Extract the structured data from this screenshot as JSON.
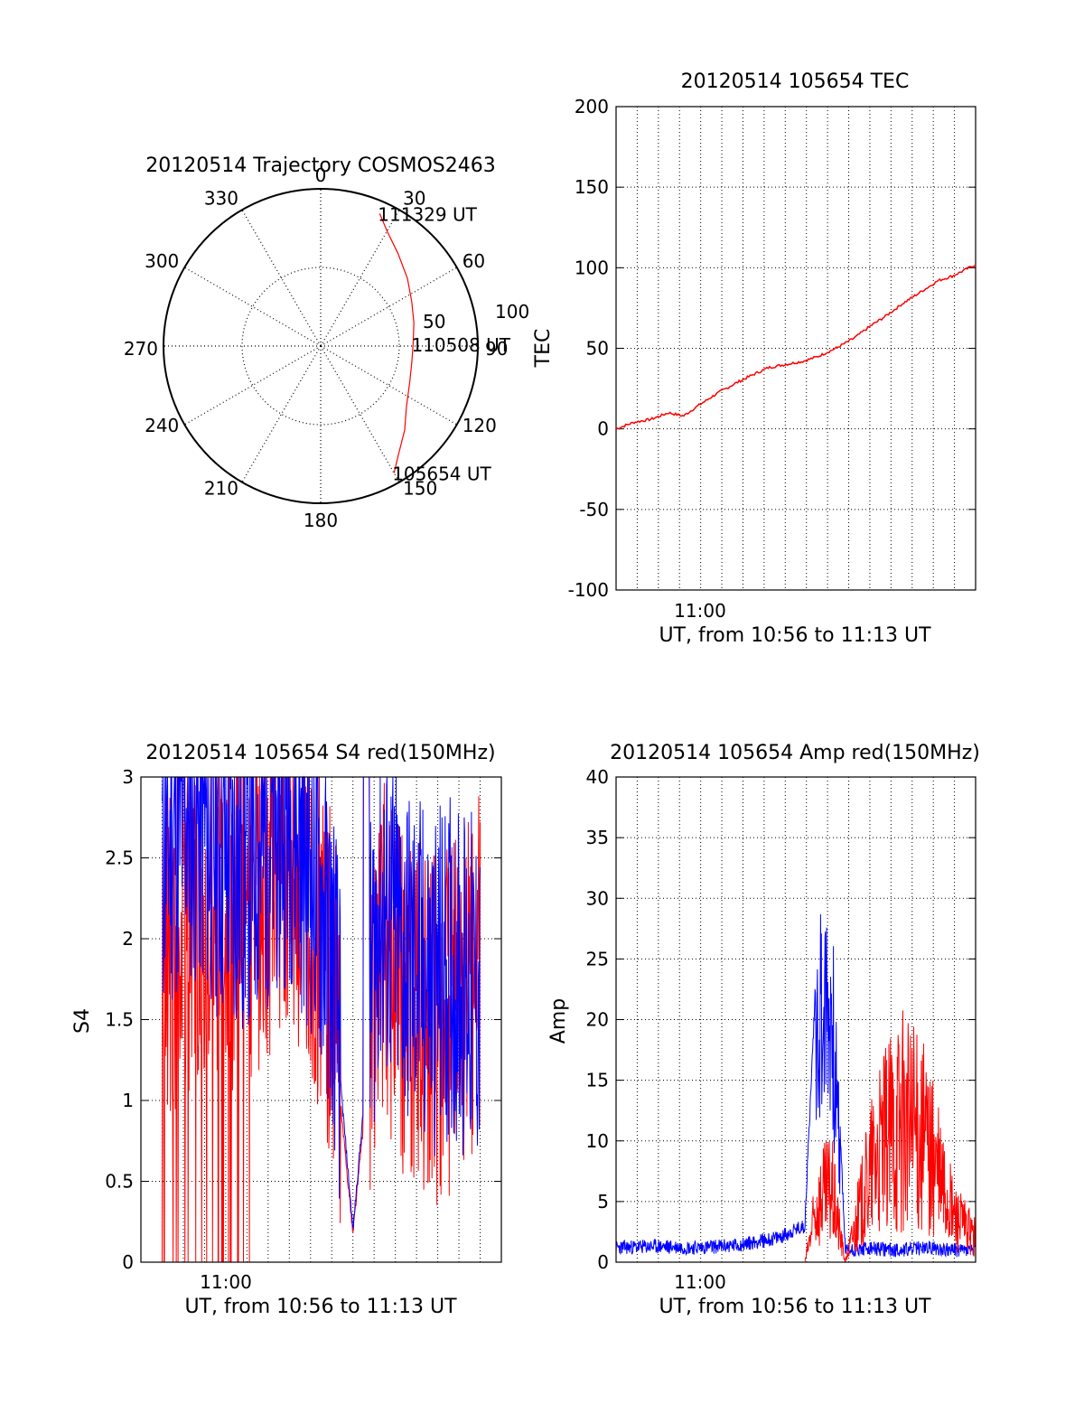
{
  "colors": {
    "red": "#ff0000",
    "blue": "#0000ff",
    "axis": "#000000"
  },
  "chart_data": [
    {
      "id": "trajectory",
      "type": "scatter",
      "title": "20120514 Trajectory COSMOS2463",
      "azimuth_labels": [
        "0",
        "30",
        "60",
        "90",
        "120",
        "150",
        "180",
        "210",
        "240",
        "270",
        "300",
        "330"
      ],
      "elevation_labels": [
        "50",
        "100"
      ],
      "series": [
        {
          "azimuth_deg": [
            150,
            144,
            135,
            125,
            112,
            100,
            88,
            76,
            64,
            52,
            40,
            30,
            24
          ],
          "zenith_deg": [
            84,
            76,
            68,
            60,
            55,
            53,
            53,
            55,
            58,
            63,
            69,
            76,
            83
          ],
          "annotations": [
            {
              "text": "105654 UT",
              "azimuth_deg": 150,
              "zenith_deg": 84
            },
            {
              "text": "110508 UT",
              "azimuth_deg": 89,
              "zenith_deg": 53
            },
            {
              "text": "111329 UT",
              "azimuth_deg": 24,
              "zenith_deg": 83
            }
          ]
        }
      ]
    },
    {
      "id": "tec",
      "type": "line",
      "title": "20120514 105654 TEC",
      "xlabel": "UT, from 10:56 to 11:13 UT",
      "ylabel": "TEC",
      "xlim": [
        10.95,
        11.2167
      ],
      "ylim": [
        -100,
        200
      ],
      "yticks": [
        "200",
        "150",
        "100",
        "50",
        "0",
        "-50",
        "-100"
      ],
      "xtick_label": "11:00",
      "series": [
        {
          "x_hours": [
            10.95,
            10.963,
            10.976,
            10.989,
            11.0,
            11.012,
            11.025,
            11.038,
            11.05,
            11.063,
            11.076,
            11.089,
            11.1,
            11.113,
            11.126,
            11.139,
            11.15,
            11.163,
            11.176,
            11.189,
            11.2,
            11.2167
          ],
          "values": [
            0,
            4,
            6,
            10,
            8,
            15,
            22,
            28,
            33,
            38,
            40,
            42,
            45,
            50,
            56,
            64,
            70,
            78,
            85,
            92,
            95,
            102
          ]
        }
      ]
    },
    {
      "id": "s4",
      "type": "line",
      "title": "20120514 105654 S4 red(150MHz)",
      "xlabel": "UT, from 10:56 to 11:13 UT",
      "ylabel": "S4",
      "xlim": [
        10.9333,
        11.2167
      ],
      "ylim": [
        0,
        3
      ],
      "yticks": [
        "3",
        "2.5",
        "2",
        "1.5",
        "1",
        "0.5",
        "0"
      ],
      "xtick_label": "11:00",
      "series": [
        {
          "x_hours": [
            10.95,
            10.97,
            10.99,
            11.01,
            11.03,
            11.05,
            11.07,
            11.085,
            11.1,
            11.12,
            11.14,
            11.16,
            11.18,
            11.2
          ],
          "values": [
            2.3,
            2.6,
            2.4,
            2.2,
            2.4,
            2.6,
            2.2,
            1.6,
            0.2,
            2.0,
            1.7,
            1.5,
            1.6,
            1.4
          ]
        },
        {
          "x_hours": [
            10.95,
            10.97,
            10.99,
            11.01,
            11.03,
            11.05,
            11.07,
            11.085,
            11.1,
            11.12,
            11.14,
            11.16,
            11.18,
            11.2
          ],
          "values": [
            1.7,
            1.9,
            2.0,
            1.9,
            2.1,
            2.2,
            1.9,
            1.4,
            0.18,
            1.8,
            1.4,
            1.2,
            1.3,
            1.6
          ]
        }
      ]
    },
    {
      "id": "amp",
      "type": "line",
      "title": "20120514 105654 Amp red(150MHz)",
      "xlabel": "UT, from 10:56 to 11:13 UT",
      "ylabel": "Amp",
      "xlim": [
        10.95,
        11.2167
      ],
      "ylim": [
        0,
        40
      ],
      "yticks": [
        "40",
        "35",
        "30",
        "25",
        "20",
        "15",
        "10",
        "5",
        "0"
      ],
      "xtick_label": "11:00",
      "series": [
        {
          "x_hours": [
            10.95,
            10.98,
            11.01,
            11.04,
            11.07,
            11.09,
            11.1,
            11.11,
            11.12,
            11.14,
            11.16,
            11.18,
            11.2,
            11.2167
          ],
          "values": [
            1.2,
            1.3,
            1.2,
            1.4,
            2.0,
            3.0,
            28.0,
            27.0,
            1.0,
            1.1,
            1.0,
            1.2,
            1.0,
            1.0
          ]
        },
        {
          "x_hours": [
            10.95,
            10.98,
            11.01,
            11.04,
            11.07,
            11.09,
            11.1,
            11.11,
            11.12,
            11.14,
            11.16,
            11.18,
            11.2,
            11.2167
          ],
          "values": [
            0,
            0,
            0,
            0,
            0,
            0,
            5.0,
            6.0,
            0,
            8.0,
            12.0,
            10.0,
            4.0,
            2.0
          ]
        }
      ]
    }
  ]
}
